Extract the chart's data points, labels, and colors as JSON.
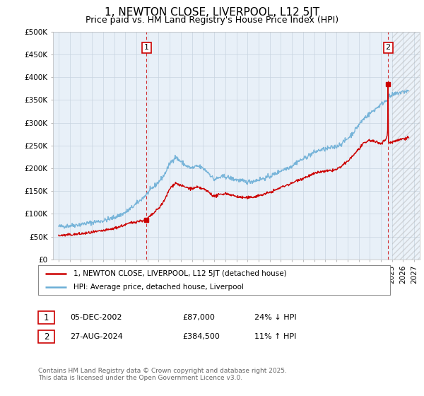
{
  "title": "1, NEWTON CLOSE, LIVERPOOL, L12 5JT",
  "subtitle": "Price paid vs. HM Land Registry's House Price Index (HPI)",
  "ylabel_ticks": [
    "£0",
    "£50K",
    "£100K",
    "£150K",
    "£200K",
    "£250K",
    "£300K",
    "£350K",
    "£400K",
    "£450K",
    "£500K"
  ],
  "ylim": [
    0,
    500000
  ],
  "xlim_start": 1994.5,
  "xlim_end": 2027.5,
  "hpi_color": "#6baed6",
  "price_color": "#cc0000",
  "dashed_line_color": "#cc0000",
  "chart_bg_color": "#e8f0f8",
  "sale1_x": 2002.92,
  "sale1_y": 87000,
  "sale1_label": "1",
  "sale2_x": 2024.65,
  "sale2_y": 384500,
  "sale2_label": "2",
  "future_start": 2025.0,
  "legend_line1": "1, NEWTON CLOSE, LIVERPOOL, L12 5JT (detached house)",
  "legend_line2": "HPI: Average price, detached house, Liverpool",
  "table_row1": [
    "1",
    "05-DEC-2002",
    "£87,000",
    "24% ↓ HPI"
  ],
  "table_row2": [
    "2",
    "27-AUG-2024",
    "£384,500",
    "11% ↑ HPI"
  ],
  "footnote": "Contains HM Land Registry data © Crown copyright and database right 2025.\nThis data is licensed under the Open Government Licence v3.0.",
  "background_color": "#ffffff",
  "grid_color": "#c8d4e0",
  "title_fontsize": 11,
  "subtitle_fontsize": 9,
  "axis_fontsize": 7.5,
  "hpi_anchors": [
    [
      1995.0,
      72000
    ],
    [
      1995.5,
      73000
    ],
    [
      1996.0,
      74000
    ],
    [
      1996.5,
      75500
    ],
    [
      1997.0,
      77000
    ],
    [
      1997.5,
      79000
    ],
    [
      1998.0,
      81000
    ],
    [
      1998.5,
      83000
    ],
    [
      1999.0,
      85000
    ],
    [
      1999.5,
      88000
    ],
    [
      2000.0,
      92000
    ],
    [
      2000.5,
      97000
    ],
    [
      2001.0,
      103000
    ],
    [
      2001.5,
      112000
    ],
    [
      2002.0,
      122000
    ],
    [
      2002.5,
      133000
    ],
    [
      2003.0,
      145000
    ],
    [
      2003.5,
      158000
    ],
    [
      2004.0,
      170000
    ],
    [
      2004.5,
      185000
    ],
    [
      2005.0,
      210000
    ],
    [
      2005.5,
      225000
    ],
    [
      2006.0,
      215000
    ],
    [
      2006.5,
      205000
    ],
    [
      2007.0,
      200000
    ],
    [
      2007.5,
      205000
    ],
    [
      2008.0,
      200000
    ],
    [
      2008.5,
      190000
    ],
    [
      2009.0,
      175000
    ],
    [
      2009.5,
      180000
    ],
    [
      2010.0,
      182000
    ],
    [
      2010.5,
      178000
    ],
    [
      2011.0,
      175000
    ],
    [
      2011.5,
      172000
    ],
    [
      2012.0,
      170000
    ],
    [
      2012.5,
      172000
    ],
    [
      2013.0,
      175000
    ],
    [
      2013.5,
      178000
    ],
    [
      2014.0,
      182000
    ],
    [
      2014.5,
      188000
    ],
    [
      2015.0,
      195000
    ],
    [
      2015.5,
      200000
    ],
    [
      2016.0,
      205000
    ],
    [
      2016.5,
      215000
    ],
    [
      2017.0,
      220000
    ],
    [
      2017.5,
      228000
    ],
    [
      2018.0,
      235000
    ],
    [
      2018.5,
      240000
    ],
    [
      2019.0,
      242000
    ],
    [
      2019.5,
      245000
    ],
    [
      2020.0,
      248000
    ],
    [
      2020.5,
      255000
    ],
    [
      2021.0,
      265000
    ],
    [
      2021.5,
      278000
    ],
    [
      2022.0,
      295000
    ],
    [
      2022.5,
      310000
    ],
    [
      2023.0,
      320000
    ],
    [
      2023.5,
      330000
    ],
    [
      2024.0,
      340000
    ],
    [
      2024.5,
      350000
    ],
    [
      2024.65,
      355000
    ],
    [
      2025.0,
      360000
    ],
    [
      2025.5,
      365000
    ],
    [
      2026.0,
      368000
    ],
    [
      2026.5,
      370000
    ]
  ],
  "price_anchors": [
    [
      1995.0,
      52000
    ],
    [
      1995.5,
      53000
    ],
    [
      1996.0,
      54000
    ],
    [
      1996.5,
      55000
    ],
    [
      1997.0,
      56000
    ],
    [
      1997.5,
      57500
    ],
    [
      1998.0,
      59000
    ],
    [
      1998.5,
      61000
    ],
    [
      1999.0,
      63000
    ],
    [
      1999.5,
      65000
    ],
    [
      2000.0,
      68000
    ],
    [
      2000.5,
      72000
    ],
    [
      2001.0,
      76000
    ],
    [
      2001.5,
      80000
    ],
    [
      2002.0,
      83000
    ],
    [
      2002.5,
      85000
    ],
    [
      2002.92,
      87000
    ],
    [
      2003.0,
      90000
    ],
    [
      2003.5,
      100000
    ],
    [
      2004.0,
      112000
    ],
    [
      2004.5,
      128000
    ],
    [
      2005.0,
      155000
    ],
    [
      2005.5,
      168000
    ],
    [
      2006.0,
      162000
    ],
    [
      2006.5,
      158000
    ],
    [
      2007.0,
      155000
    ],
    [
      2007.5,
      158000
    ],
    [
      2008.0,
      155000
    ],
    [
      2008.5,
      148000
    ],
    [
      2009.0,
      138000
    ],
    [
      2009.5,
      142000
    ],
    [
      2010.0,
      145000
    ],
    [
      2010.5,
      142000
    ],
    [
      2011.0,
      138000
    ],
    [
      2011.5,
      136000
    ],
    [
      2012.0,
      135000
    ],
    [
      2012.5,
      137000
    ],
    [
      2013.0,
      140000
    ],
    [
      2013.5,
      143000
    ],
    [
      2014.0,
      147000
    ],
    [
      2014.5,
      152000
    ],
    [
      2015.0,
      158000
    ],
    [
      2015.5,
      163000
    ],
    [
      2016.0,
      167000
    ],
    [
      2016.5,
      174000
    ],
    [
      2017.0,
      178000
    ],
    [
      2017.5,
      183000
    ],
    [
      2018.0,
      188000
    ],
    [
      2018.5,
      192000
    ],
    [
      2019.0,
      193000
    ],
    [
      2019.5,
      195000
    ],
    [
      2020.0,
      197000
    ],
    [
      2020.5,
      205000
    ],
    [
      2021.0,
      215000
    ],
    [
      2021.5,
      228000
    ],
    [
      2022.0,
      242000
    ],
    [
      2022.5,
      255000
    ],
    [
      2023.0,
      262000
    ],
    [
      2023.5,
      258000
    ],
    [
      2024.0,
      255000
    ],
    [
      2024.3,
      260000
    ],
    [
      2024.5,
      265000
    ],
    [
      2024.6,
      275000
    ],
    [
      2024.63,
      310000
    ],
    [
      2024.65,
      384500
    ],
    [
      2024.67,
      260000
    ],
    [
      2024.8,
      255000
    ],
    [
      2025.0,
      258000
    ],
    [
      2025.5,
      262000
    ],
    [
      2026.0,
      265000
    ],
    [
      2026.5,
      268000
    ]
  ]
}
